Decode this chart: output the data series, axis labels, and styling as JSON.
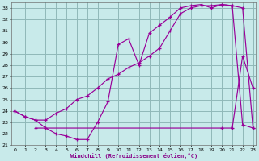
{
  "bg_color": "#c8eaea",
  "grid_color": "#90b8b8",
  "line_color": "#990099",
  "xlim": [
    -0.3,
    23.3
  ],
  "ylim": [
    21,
    33.5
  ],
  "yticks": [
    21,
    22,
    23,
    24,
    25,
    26,
    27,
    28,
    29,
    30,
    31,
    32,
    33
  ],
  "xticks": [
    0,
    1,
    2,
    3,
    4,
    5,
    6,
    7,
    8,
    9,
    10,
    11,
    12,
    13,
    14,
    15,
    16,
    17,
    18,
    19,
    20,
    21,
    22,
    23
  ],
  "xlabel": "Windchill (Refroidissement éolien,°C)",
  "line1_x": [
    0,
    1,
    2,
    3,
    4,
    5,
    6,
    7,
    8,
    9,
    10,
    11,
    12,
    13,
    14,
    15,
    16,
    17,
    18,
    19,
    20,
    21,
    22,
    23
  ],
  "line1_y": [
    24.0,
    23.5,
    23.2,
    22.5,
    22.0,
    21.8,
    21.5,
    21.5,
    23.0,
    24.8,
    29.8,
    30.3,
    28.0,
    30.8,
    31.5,
    32.2,
    33.0,
    33.2,
    33.3,
    33.0,
    33.3,
    33.2,
    33.0,
    22.5
  ],
  "line2_x": [
    0,
    1,
    2,
    3,
    4,
    5,
    6,
    7,
    8,
    9,
    10,
    11,
    12,
    13,
    14,
    15,
    16,
    17,
    18,
    19,
    20,
    21,
    22,
    23
  ],
  "line2_y": [
    24.0,
    23.5,
    23.2,
    23.2,
    23.8,
    24.2,
    25.0,
    25.3,
    26.0,
    26.8,
    27.2,
    27.8,
    28.2,
    28.8,
    29.5,
    31.0,
    32.5,
    33.0,
    33.2,
    33.2,
    33.3,
    33.2,
    22.8,
    22.5
  ],
  "line3_x": [
    2,
    3,
    20,
    21,
    22,
    23
  ],
  "line3_y": [
    22.5,
    22.5,
    22.5,
    22.5,
    28.8,
    26.0
  ]
}
